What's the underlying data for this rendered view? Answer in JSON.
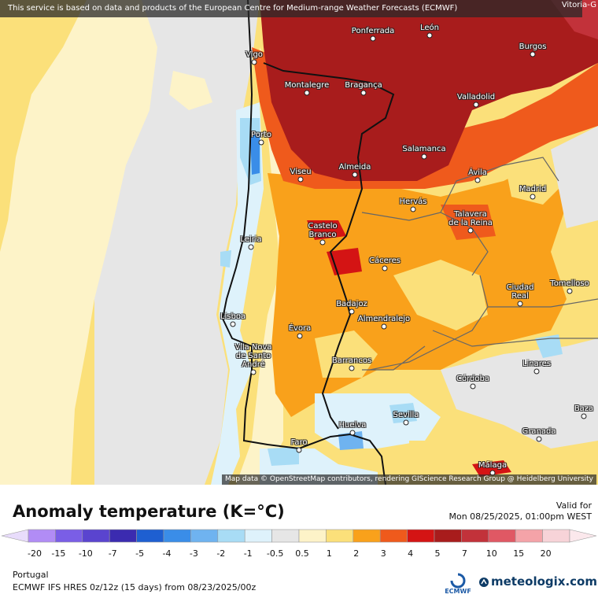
{
  "banner": "This service is based on data and products of the European Centre for Medium-range Weather Forecasts (ECMWF)",
  "corner_label": "Vitoria-G",
  "attribution": "Map data © OpenStreetMap contributors, rendering GIScience Research Group @ Heidelberg University",
  "title": "Anomaly temperature (K=°C)",
  "valid_label": "Valid for",
  "valid_date": "Mon 08/25/2025, 01:00pm WEST",
  "region": "Portugal",
  "model": "ECMWF IFS HRES 0z/12z (15 days) from 08/23/2025/00z",
  "ecmwf_logo_text": "ECMWF",
  "brand": "meteologix.com",
  "colorbar": {
    "ticks": [
      "-20",
      "-15",
      "-10",
      "-7",
      "-5",
      "-4",
      "-3",
      "-2",
      "-1",
      "-0.5",
      "0.5",
      "1",
      "2",
      "3",
      "4",
      "5",
      "7",
      "10",
      "15",
      "20"
    ],
    "colors": [
      "#b18cf5",
      "#7a5ee6",
      "#5a44cf",
      "#3b2bb0",
      "#1e5fd1",
      "#3a8de8",
      "#6fb3f0",
      "#a8dcf5",
      "#def2fb",
      "#e6e6e6",
      "#fdf3c8",
      "#fbe07a",
      "#f9a11b",
      "#ef5a1c",
      "#d41414",
      "#a81c1c",
      "#c2323a",
      "#e05864",
      "#f4a3a8",
      "#f7d3d8"
    ]
  },
  "cities": [
    {
      "name": "Ponferrada"
    },
    {
      "name": "León"
    },
    {
      "name": "Vigo"
    },
    {
      "name": "Burgos"
    },
    {
      "name": "Montalegre"
    },
    {
      "name": "Bragança"
    },
    {
      "name": "Valladolid"
    },
    {
      "name": "Porto"
    },
    {
      "name": "Salamanca"
    },
    {
      "name": "Viseu"
    },
    {
      "name": "Almeida"
    },
    {
      "name": "Ávila"
    },
    {
      "name": "Madrid"
    },
    {
      "name": "Hervás"
    },
    {
      "name": "Talavera de la Reina"
    },
    {
      "name": "Castelo Branco"
    },
    {
      "name": "Leiria"
    },
    {
      "name": "Cáceres"
    },
    {
      "name": "Ciudad Real"
    },
    {
      "name": "Tomelloso"
    },
    {
      "name": "Badajoz"
    },
    {
      "name": "Lisboa"
    },
    {
      "name": "Almendralejo"
    },
    {
      "name": "Évora"
    },
    {
      "name": "Vila Nova de Santo André"
    },
    {
      "name": "Barrancos"
    },
    {
      "name": "Linares"
    },
    {
      "name": "Córdoba"
    },
    {
      "name": "Sevilla"
    },
    {
      "name": "Baza"
    },
    {
      "name": "Huelva"
    },
    {
      "name": "Granada"
    },
    {
      "name": "Faro"
    },
    {
      "name": "Málaga"
    }
  ]
}
